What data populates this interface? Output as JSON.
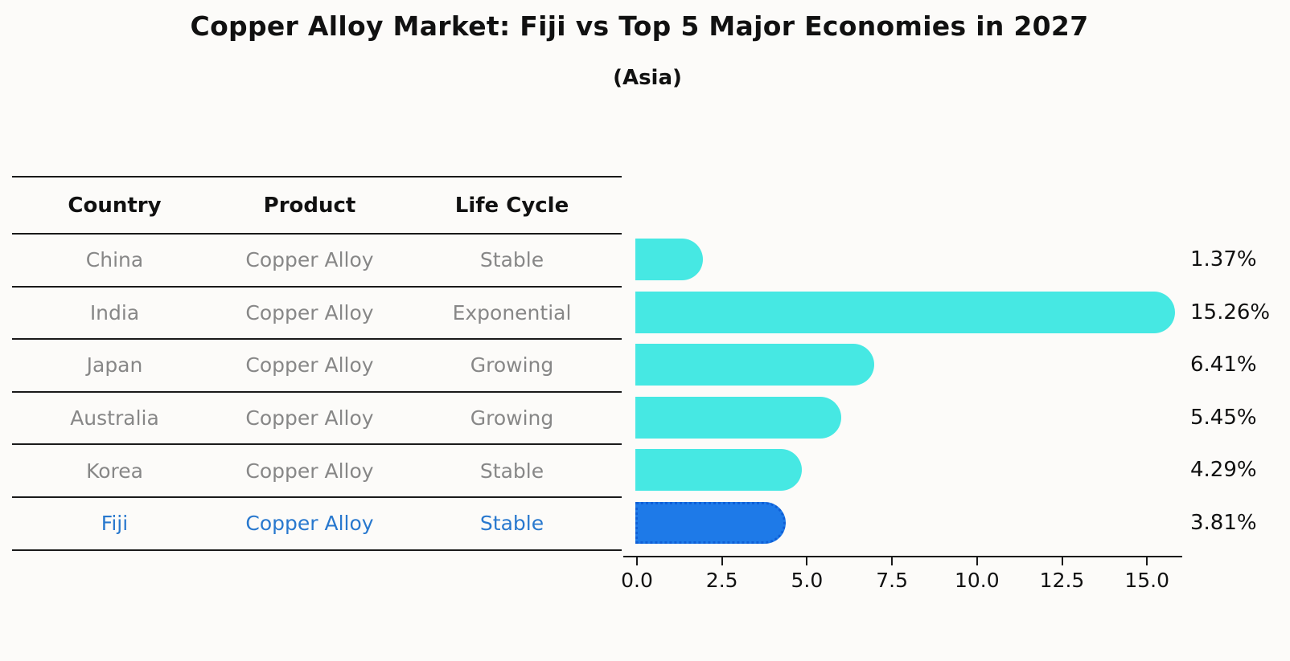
{
  "title": "Copper Alloy Market: Fiji vs Top 5 Major Economies in 2027",
  "subtitle": "(Asia)",
  "table": {
    "headers": [
      "Country",
      "Product",
      "Life Cycle"
    ],
    "rows": [
      {
        "country": "China",
        "product": "Copper Alloy",
        "life_cycle": "Stable",
        "highlight": false
      },
      {
        "country": "India",
        "product": "Copper Alloy",
        "life_cycle": "Exponential",
        "highlight": false
      },
      {
        "country": "Japan",
        "product": "Copper Alloy",
        "life_cycle": "Growing",
        "highlight": false
      },
      {
        "country": "Australia",
        "product": "Copper Alloy",
        "life_cycle": "Growing",
        "highlight": false
      },
      {
        "country": "Korea",
        "product": "Copper Alloy",
        "life_cycle": "Stable",
        "highlight": false
      },
      {
        "country": "Fiji",
        "product": "Copper Alloy",
        "life_cycle": "Stable",
        "highlight": true
      }
    ]
  },
  "chart_data": {
    "type": "bar",
    "orientation": "horizontal",
    "title": "Copper Alloy Market: Fiji vs Top 5 Major Economies in 2027",
    "subtitle": "(Asia)",
    "categories": [
      "China",
      "India",
      "Japan",
      "Australia",
      "Korea",
      "Fiji"
    ],
    "values": [
      1.37,
      15.26,
      6.41,
      5.45,
      4.29,
      3.81
    ],
    "value_labels": [
      "1.37%",
      "15.26%",
      "6.41%",
      "5.45%",
      "4.29%",
      "3.81%"
    ],
    "highlight_index": 5,
    "xlabel": "",
    "ylabel": "",
    "xlim": [
      0,
      16
    ],
    "x_ticks": [
      0.0,
      2.5,
      5.0,
      7.5,
      10.0,
      12.5,
      15.0
    ],
    "x_tick_labels": [
      "0.0",
      "2.5",
      "5.0",
      "7.5",
      "10.0",
      "12.5",
      "15.0"
    ],
    "grid": false,
    "legend": false,
    "colors": {
      "bar_default": "#46E8E3",
      "bar_highlight": "#1E7AE8",
      "bar_highlight_border": "#0F5FD7",
      "highlight_text": "#2878CE",
      "table_text": "#878787",
      "text": "#111111",
      "axis": "#1a1a1a",
      "background": "#fcfbf9"
    }
  }
}
